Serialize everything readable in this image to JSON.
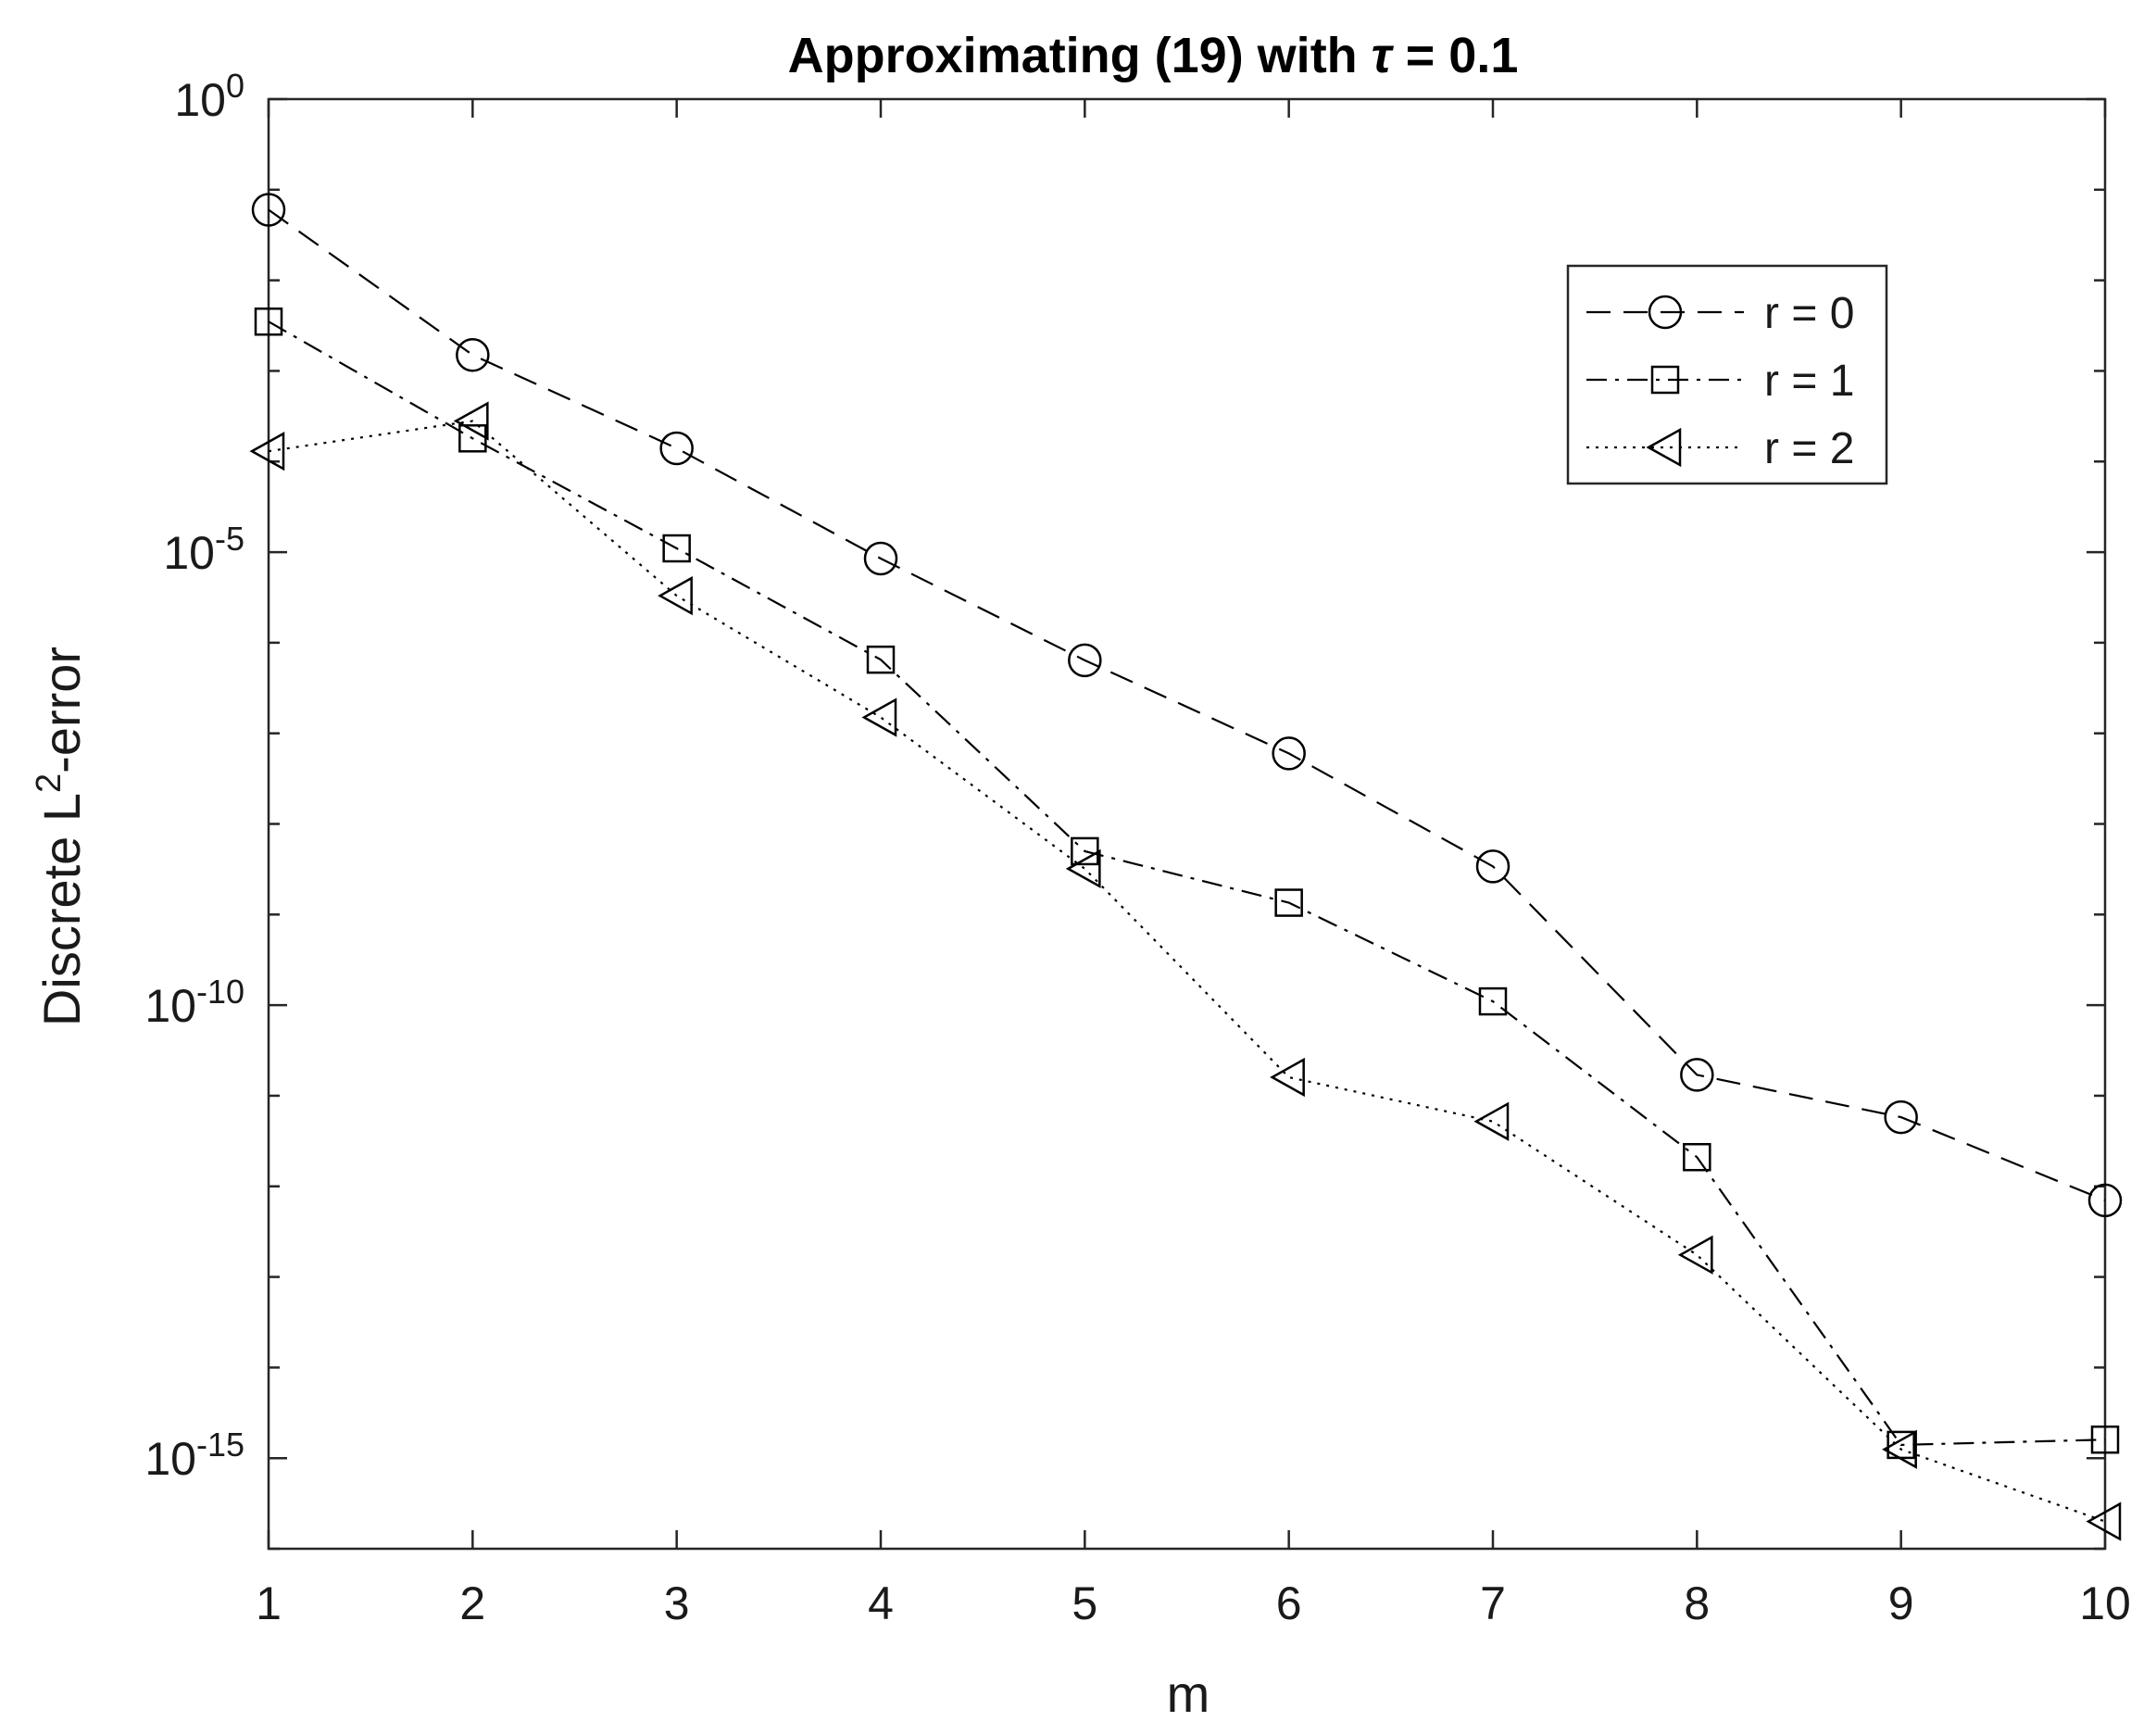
{
  "chart_data": {
    "type": "line",
    "title": "Approximating (19) with τ = 0.1",
    "title_parts": [
      "Approximating (19) with ",
      "τ",
      " = 0.1"
    ],
    "xlabel": "m",
    "ylabel": "Discrete L",
    "ylabel_sup": "2",
    "ylabel_suffix": "-error",
    "y_scale": "log",
    "xlim": [
      1,
      10
    ],
    "ylim": [
      1e-16,
      1
    ],
    "x_ticks": [
      "1",
      "2",
      "3",
      "4",
      "5",
      "6",
      "7",
      "8",
      "9",
      "10"
    ],
    "y_ticks": [
      {
        "value": 1,
        "base": "10",
        "exp": "0"
      },
      {
        "value": 1e-05,
        "base": "10",
        "exp": "-5"
      },
      {
        "value": 1e-10,
        "base": "10",
        "exp": "-10"
      },
      {
        "value": 1e-15,
        "base": "10",
        "exp": "-15"
      }
    ],
    "grid": false,
    "legend_position": "top-right",
    "x": [
      1,
      2,
      3,
      4,
      5,
      6,
      7,
      8,
      9,
      10
    ],
    "series": [
      {
        "name": "r = 0",
        "line": "dashed",
        "marker": "circle",
        "values": [
          0.06,
          0.0015,
          0.00014,
          8.5e-06,
          6.4e-07,
          6e-08,
          3.4e-09,
          1.7e-11,
          5.8e-12,
          7e-13
        ]
      },
      {
        "name": "r = 1",
        "line": "dashdot",
        "marker": "square",
        "values": [
          0.0035,
          0.00018,
          1.1e-05,
          6.5e-07,
          5e-09,
          1.35e-09,
          1.1e-10,
          2.1e-12,
          1.4e-15,
          1.6e-15
        ]
      },
      {
        "name": "r = 2",
        "line": "dotted",
        "marker": "triangle-left",
        "values": [
          0.00013,
          0.00028,
          3.3e-06,
          1.5e-07,
          3.2e-09,
          1.6e-11,
          5.2e-12,
          1.75e-13,
          1.25e-15,
          2e-16
        ]
      }
    ]
  }
}
